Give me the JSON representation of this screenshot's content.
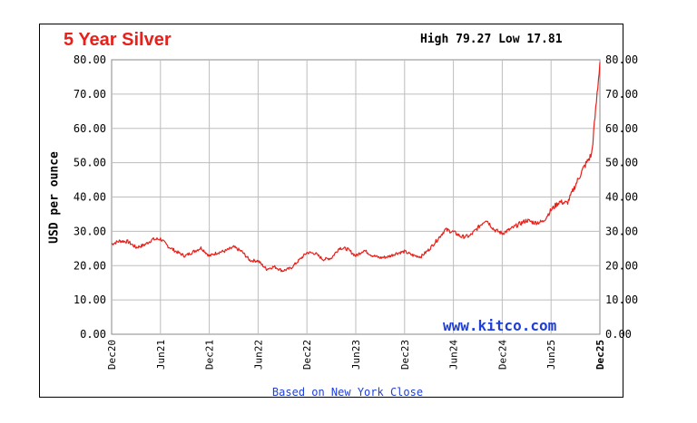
{
  "chart_data": {
    "type": "line",
    "title": "5 Year Silver",
    "high_low": "High 79.27 Low 17.81",
    "ylabel": "USD per ounce",
    "footnote": "Based on New York Close",
    "brand": "www.kitco.com",
    "ylim": [
      0,
      80
    ],
    "yticks": [
      "0.00",
      "10.00",
      "20.00",
      "30.00",
      "40.00",
      "50.00",
      "60.00",
      "70.00",
      "80.00"
    ],
    "xticks": [
      "Dec20",
      "Jun21",
      "Dec21",
      "Jun22",
      "Dec22",
      "Jun23",
      "Dec23",
      "Jun24",
      "Dec24",
      "Jun25",
      "Dec25"
    ],
    "grid": true,
    "line_color": "#e8201a",
    "series": [
      {
        "x": [
          "Dec20",
          "Jan21",
          "Feb21",
          "Mar21",
          "Apr21",
          "May21",
          "Jun21",
          "Jul21",
          "Aug21",
          "Sep21",
          "Oct21",
          "Nov21",
          "Dec21",
          "Jan22",
          "Feb22",
          "Mar22",
          "Apr22",
          "May22",
          "Jun22",
          "Jul22",
          "Aug22",
          "Sep22",
          "Oct22",
          "Nov22",
          "Dec22",
          "Jan23",
          "Feb23",
          "Mar23",
          "Apr23",
          "May23",
          "Jun23",
          "Jul23",
          "Aug23",
          "Sep23",
          "Oct23",
          "Nov23",
          "Dec23",
          "Jan24",
          "Feb24",
          "Mar24",
          "Apr24",
          "May24",
          "Jun24",
          "Jul24",
          "Aug24",
          "Sep24",
          "Oct24",
          "Nov24",
          "Dec24",
          "Jan25",
          "Feb25",
          "Mar25",
          "Apr25",
          "May25",
          "Jun25",
          "Jul25",
          "Aug25",
          "Sep25",
          "Oct25",
          "Nov25",
          "Dec25"
        ],
        "values": [
          26.3,
          27.2,
          27.0,
          25.3,
          26.0,
          27.6,
          27.8,
          25.5,
          24.0,
          22.8,
          24.0,
          25.2,
          22.8,
          23.8,
          24.3,
          25.4,
          24.1,
          21.5,
          21.4,
          19.0,
          19.7,
          18.5,
          19.2,
          21.5,
          23.8,
          23.6,
          21.8,
          22.2,
          25.2,
          24.8,
          22.8,
          24.5,
          23.0,
          22.3,
          22.6,
          23.6,
          24.1,
          23.0,
          22.6,
          24.7,
          27.5,
          30.5,
          29.8,
          28.4,
          28.6,
          31.0,
          33.5,
          30.5,
          29.4,
          30.6,
          32.0,
          33.2,
          32.5,
          32.8,
          36.2,
          38.6,
          38.2,
          43.5,
          48.5,
          52.5,
          79.27
        ]
      }
    ]
  }
}
